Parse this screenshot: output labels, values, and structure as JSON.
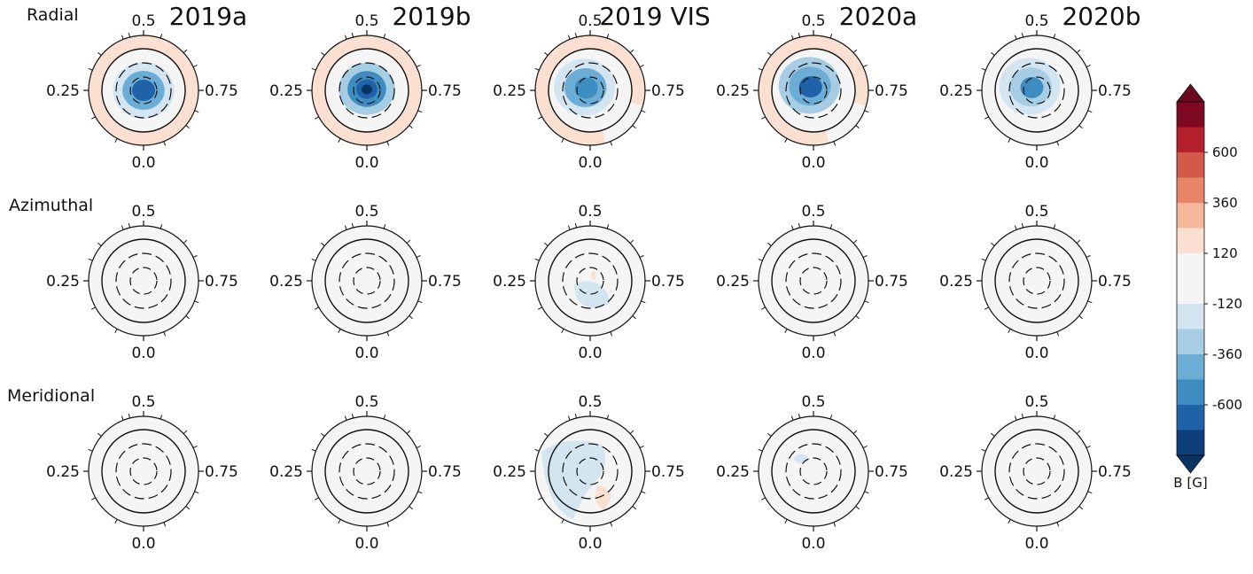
{
  "chart_data": {
    "type": "heatmap",
    "kind": "polar magnetic field maps",
    "columns": [
      "2019a",
      "2019b",
      "2019 VIS",
      "2020a",
      "2020b"
    ],
    "rows": [
      "Radial",
      "Azimuthal",
      "Meridional"
    ],
    "phase_labels": {
      "top": "0.5",
      "left": "0.25",
      "right": "0.75",
      "bottom": "0.0"
    },
    "colorbar": {
      "label": "B [G]",
      "range": [
        -840,
        840
      ],
      "ticks": [
        600,
        360,
        120,
        -120,
        -360,
        -600
      ],
      "tick_labels": [
        "600",
        "360",
        "120",
        "-120",
        "-360",
        "-600"
      ],
      "levels": [
        {
          "from": -840,
          "to": -720,
          "color": "#0e3f7a"
        },
        {
          "from": -720,
          "to": -600,
          "color": "#1f62a8"
        },
        {
          "from": -600,
          "to": -480,
          "color": "#3d8dc2"
        },
        {
          "from": -480,
          "to": -360,
          "color": "#6cadd5"
        },
        {
          "from": -360,
          "to": -240,
          "color": "#a6cde3"
        },
        {
          "from": -240,
          "to": -120,
          "color": "#d3e5f0"
        },
        {
          "from": -120,
          "to": 0,
          "color": "#f5f5f5"
        },
        {
          "from": 0,
          "to": 120,
          "color": "#f5f5f5"
        },
        {
          "from": 120,
          "to": 240,
          "color": "#fbe0d1"
        },
        {
          "from": 240,
          "to": 360,
          "color": "#f6b89b"
        },
        {
          "from": 360,
          "to": 480,
          "color": "#e88467"
        },
        {
          "from": 480,
          "to": 600,
          "color": "#d25a4a"
        },
        {
          "from": 600,
          "to": 720,
          "color": "#b4202c"
        },
        {
          "from": 720,
          "to": 840,
          "color": "#7d0a22"
        }
      ],
      "extend_max_color": "#6b0a1f",
      "extend_min_color": "#0a3463"
    },
    "maps": {
      "Radial": [
        {
          "outer_ring_value": 150,
          "spots": [
            {
              "lat": 90,
              "lon": 0,
              "values": [
                -200,
                -450,
                -620
              ]
            }
          ]
        },
        {
          "outer_ring_value": 150,
          "spots": [
            {
              "lat": 88,
              "lon": 0,
              "values": [
                -250,
                -500,
                -700,
                -850
              ]
            }
          ]
        },
        {
          "outer_ring_value": 150,
          "spots": [
            {
              "lat": 82,
              "lon": 300,
              "values": [
                -200,
                -400,
                -560
              ]
            }
          ]
        },
        {
          "outer_ring_value": 150,
          "spots": [
            {
              "lat": 82,
              "lon": 320,
              "values": [
                -250,
                -450,
                -650
              ]
            }
          ]
        },
        {
          "outer_ring_value": 100,
          "spots": [
            {
              "lat": 80,
              "lon": 300,
              "values": [
                -180,
                -350,
                -520
              ]
            }
          ]
        }
      ],
      "Azimuthal": [
        {
          "features": []
        },
        {
          "features": []
        },
        {
          "features": [
            {
              "value": -150
            },
            {
              "value": 150
            }
          ]
        },
        {
          "features": []
        },
        {
          "features": []
        }
      ],
      "Meridional": [
        {
          "features": []
        },
        {
          "features": []
        },
        {
          "features": [
            {
              "value": -150
            },
            {
              "value": 160
            }
          ]
        },
        {
          "features": [
            {
              "value": -140
            }
          ]
        },
        {
          "features": []
        }
      ]
    }
  }
}
